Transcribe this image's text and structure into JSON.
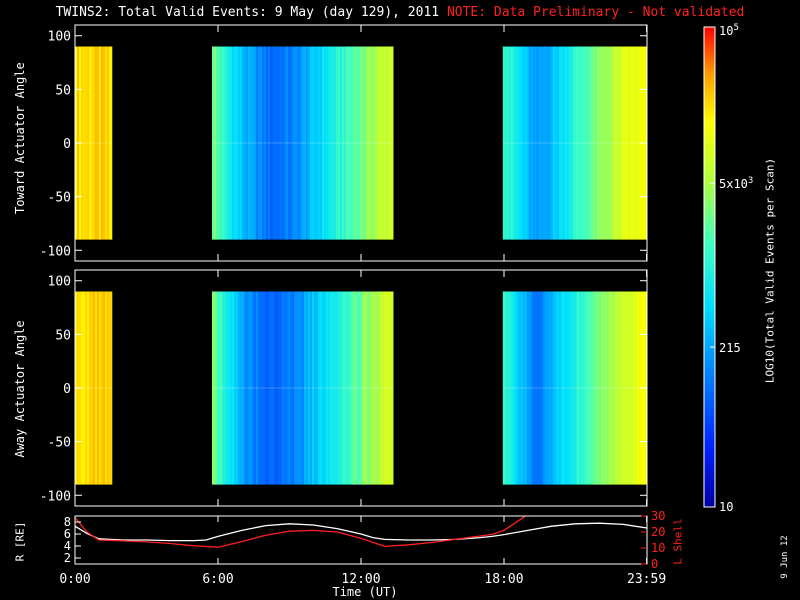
{
  "title": {
    "main": "TWINS2: Total Valid Events:  9 May (day 129), 2011",
    "note": "NOTE: Data Preliminary - Not validated"
  },
  "side_date": "9 Jun 12",
  "colors": {
    "background": "#000000",
    "axes": "#ffffff",
    "note": "#ff2020",
    "r_line": "#ffffff",
    "lshell_line": "#ff2020"
  },
  "chart_data": [
    {
      "type": "heatmap",
      "ylabel": "Toward Actuator Angle",
      "ylim": [
        -110,
        110
      ],
      "yticks": [
        -100,
        -50,
        0,
        50,
        100
      ],
      "xlim": [
        0,
        24
      ],
      "angle_range": [
        -90,
        90
      ],
      "blocks": [
        {
          "start": 0.0,
          "end": 1.55,
          "profile": [
            [
              0.0,
              0.82
            ],
            [
              0.05,
              0.84
            ],
            [
              0.8,
              0.84
            ],
            [
              1.0,
              0.8
            ]
          ]
        },
        {
          "start": 5.75,
          "end": 13.35,
          "profile": [
            [
              0.0,
              0.62
            ],
            [
              0.08,
              0.48
            ],
            [
              0.18,
              0.35
            ],
            [
              0.32,
              0.24
            ],
            [
              0.45,
              0.28
            ],
            [
              0.6,
              0.42
            ],
            [
              0.75,
              0.55
            ],
            [
              0.9,
              0.68
            ],
            [
              1.0,
              0.74
            ]
          ]
        },
        {
          "start": 17.95,
          "end": 24.0,
          "profile": [
            [
              0.0,
              0.55
            ],
            [
              0.12,
              0.42
            ],
            [
              0.22,
              0.3
            ],
            [
              0.35,
              0.38
            ],
            [
              0.5,
              0.52
            ],
            [
              0.7,
              0.65
            ],
            [
              0.85,
              0.75
            ],
            [
              1.0,
              0.78
            ]
          ]
        }
      ]
    },
    {
      "type": "heatmap",
      "ylabel": "Away Actuator Angle",
      "ylim": [
        -110,
        110
      ],
      "yticks": [
        -100,
        -50,
        0,
        50,
        100
      ],
      "xlim": [
        0,
        24
      ],
      "angle_range": [
        -90,
        90
      ],
      "blocks": [
        {
          "start": 0.0,
          "end": 1.55,
          "profile": [
            [
              0.0,
              0.82
            ],
            [
              0.05,
              0.84
            ],
            [
              0.8,
              0.84
            ],
            [
              1.0,
              0.8
            ]
          ]
        },
        {
          "start": 5.75,
          "end": 13.35,
          "profile": [
            [
              0.0,
              0.62
            ],
            [
              0.08,
              0.48
            ],
            [
              0.18,
              0.32
            ],
            [
              0.32,
              0.22
            ],
            [
              0.45,
              0.27
            ],
            [
              0.6,
              0.42
            ],
            [
              0.75,
              0.55
            ],
            [
              0.9,
              0.68
            ],
            [
              1.0,
              0.74
            ]
          ]
        },
        {
          "start": 17.95,
          "end": 24.0,
          "profile": [
            [
              0.0,
              0.52
            ],
            [
              0.12,
              0.38
            ],
            [
              0.22,
              0.26
            ],
            [
              0.35,
              0.36
            ],
            [
              0.5,
              0.5
            ],
            [
              0.7,
              0.64
            ],
            [
              0.85,
              0.74
            ],
            [
              1.0,
              0.78
            ]
          ]
        }
      ]
    },
    {
      "type": "line",
      "xlabel": "Time (UT)",
      "xlim": [
        0,
        24
      ],
      "xticks": [
        0,
        6,
        12,
        18,
        23.983
      ],
      "xticklabels": [
        "0:00",
        "6:00",
        "12:00",
        "18:00",
        "23:59"
      ],
      "left_axis": {
        "label": "R [RE]",
        "ylim": [
          1,
          9
        ],
        "ticks": [
          2,
          4,
          6,
          8
        ]
      },
      "right_axis": {
        "label": "L Shell",
        "ylim": [
          0,
          30
        ],
        "ticks": [
          0,
          10,
          20,
          30
        ]
      },
      "series": [
        {
          "axis": "left",
          "color": "#ffffff",
          "x": [
            0,
            0.5,
            1.0,
            2.0,
            3.0,
            4.0,
            5.0,
            5.5,
            6.0,
            7.0,
            8.0,
            9.0,
            10.0,
            11.0,
            12.0,
            12.5,
            13.0,
            14.0,
            15.0,
            16.0,
            17.0,
            17.5,
            18.0,
            19.0,
            20.0,
            21.0,
            22.0,
            23.0,
            24.0
          ],
          "y": [
            7.3,
            6.1,
            5.2,
            5.0,
            5.0,
            4.9,
            4.9,
            5.0,
            5.6,
            6.6,
            7.4,
            7.7,
            7.5,
            6.9,
            6.0,
            5.4,
            5.1,
            5.0,
            5.0,
            5.1,
            5.4,
            5.6,
            5.9,
            6.6,
            7.3,
            7.7,
            7.8,
            7.6,
            7.0
          ]
        },
        {
          "axis": "right",
          "color": "#ff2020",
          "x": [
            0,
            0.5,
            1.0,
            2.0,
            3.0,
            4.0,
            5.0,
            6.0,
            7.0,
            8.0,
            9.0,
            10.0,
            11.0,
            12.0,
            13.0,
            14.0,
            15.0,
            16.0,
            17.0,
            17.5,
            18.0,
            18.5,
            19.0
          ],
          "y": [
            29.0,
            20.0,
            15.0,
            14.5,
            13.8,
            12.8,
            11.4,
            10.5,
            14.0,
            18.0,
            20.5,
            21.0,
            20.0,
            16.0,
            11.0,
            12.0,
            13.5,
            15.5,
            17.5,
            18.5,
            21.0,
            26.0,
            31.0
          ]
        }
      ]
    }
  ],
  "colorbar": {
    "label": "LOG10(Total Valid Events per Scan)",
    "scale": "log",
    "ticks": [
      {
        "value": 10,
        "label": "10"
      },
      {
        "value": 215,
        "label": "215"
      },
      {
        "value": 5000,
        "label": "5x10^3"
      },
      {
        "value": 100000,
        "label": "10^5"
      }
    ],
    "range": [
      10,
      100000
    ]
  }
}
